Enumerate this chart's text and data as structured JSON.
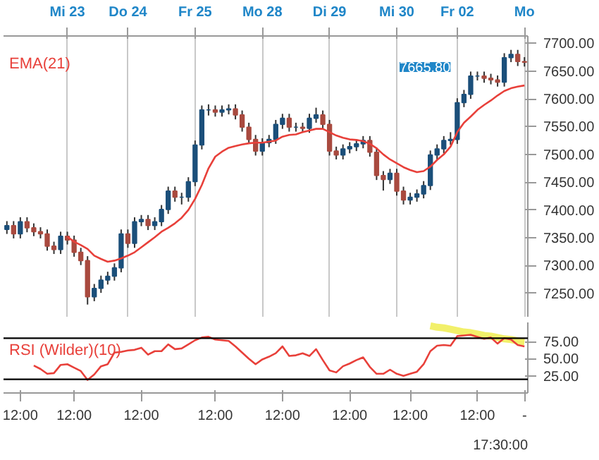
{
  "chart_data": [
    {
      "type": "candlestick",
      "ylim": [
        7208,
        7713
      ],
      "yticks": [
        {
          "value": 7250,
          "label": "7250.00"
        },
        {
          "value": 7300,
          "label": "7300.00"
        },
        {
          "value": 7350,
          "label": "7350.00"
        },
        {
          "value": 7400,
          "label": "7400.00"
        },
        {
          "value": 7450,
          "label": "7450.00"
        },
        {
          "value": 7500,
          "label": "7500.00"
        },
        {
          "value": 7550,
          "label": "7550.00"
        },
        {
          "value": 7600,
          "label": "7600.00"
        },
        {
          "value": 7650,
          "label": "7650.00"
        },
        {
          "value": 7700,
          "label": "7700.00"
        }
      ],
      "grid": "x",
      "categories": [
        null,
        null,
        null,
        null,
        null,
        null,
        null,
        null,
        null,
        "Mi 23",
        null,
        null,
        null,
        null,
        null,
        null,
        null,
        null,
        "Do 24",
        null,
        null,
        null,
        null,
        null,
        null,
        null,
        null,
        null,
        "Fr 25",
        null,
        null,
        null,
        null,
        null,
        null,
        null,
        null,
        null,
        "Mo 28",
        null,
        null,
        null,
        null,
        null,
        null,
        null,
        null,
        null,
        "Di 29",
        null,
        null,
        null,
        null,
        null,
        null,
        null,
        null,
        null,
        "Mi 30",
        null,
        null,
        null,
        null,
        null,
        null,
        null,
        null,
        "Fr 02",
        null,
        null,
        null,
        null,
        null,
        null,
        null,
        null,
        null,
        "Mo"
      ],
      "ohlc": [
        [
          7365,
          7380,
          7357,
          7372
        ],
        [
          7372,
          7380,
          7349,
          7357
        ],
        [
          7357,
          7387,
          7349,
          7379
        ],
        [
          7379,
          7387,
          7360,
          7368
        ],
        [
          7368,
          7376,
          7353,
          7361
        ],
        [
          7361,
          7369,
          7349,
          7357
        ],
        [
          7357,
          7365,
          7327,
          7335
        ],
        [
          7335,
          7343,
          7321,
          7329
        ],
        [
          7329,
          7361,
          7321,
          7353
        ],
        [
          7353,
          7361,
          7338,
          7346
        ],
        [
          7346,
          7354,
          7316,
          7324
        ],
        [
          7324,
          7332,
          7301,
          7309
        ],
        [
          7309,
          7317,
          7230,
          7244
        ],
        [
          7244,
          7267,
          7236,
          7259
        ],
        [
          7259,
          7282,
          7251,
          7274
        ],
        [
          7274,
          7289,
          7266,
          7281
        ],
        [
          7281,
          7304,
          7273,
          7296
        ],
        [
          7296,
          7365,
          7288,
          7357
        ],
        [
          7357,
          7365,
          7332,
          7340
        ],
        [
          7340,
          7387,
          7332,
          7379
        ],
        [
          7379,
          7391,
          7371,
          7383
        ],
        [
          7383,
          7391,
          7364,
          7372
        ],
        [
          7372,
          7387,
          7364,
          7379
        ],
        [
          7379,
          7409,
          7371,
          7401
        ],
        [
          7401,
          7442,
          7393,
          7434
        ],
        [
          7434,
          7442,
          7415,
          7423
        ],
        [
          7423,
          7431,
          7410,
          7423
        ],
        [
          7423,
          7459,
          7415,
          7451
        ],
        [
          7451,
          7525,
          7443,
          7517
        ],
        [
          7517,
          7588,
          7509,
          7580
        ],
        [
          7580,
          7590,
          7570,
          7580
        ],
        [
          7580,
          7588,
          7568,
          7576
        ],
        [
          7576,
          7588,
          7568,
          7580
        ],
        [
          7580,
          7590,
          7572,
          7582
        ],
        [
          7582,
          7590,
          7563,
          7571
        ],
        [
          7571,
          7579,
          7541,
          7549
        ],
        [
          7549,
          7557,
          7519,
          7527
        ],
        [
          7527,
          7535,
          7498,
          7506
        ],
        [
          7506,
          7529,
          7498,
          7521
        ],
        [
          7521,
          7535,
          7513,
          7527
        ],
        [
          7527,
          7562,
          7519,
          7554
        ],
        [
          7554,
          7573,
          7546,
          7565
        ],
        [
          7565,
          7573,
          7541,
          7549
        ],
        [
          7549,
          7557,
          7541,
          7549
        ],
        [
          7549,
          7557,
          7539,
          7547
        ],
        [
          7547,
          7573,
          7539,
          7565
        ],
        [
          7565,
          7584,
          7557,
          7571
        ],
        [
          7571,
          7579,
          7546,
          7554
        ],
        [
          7554,
          7562,
          7498,
          7506
        ],
        [
          7506,
          7514,
          7491,
          7499
        ],
        [
          7499,
          7518,
          7491,
          7510
        ],
        [
          7510,
          7522,
          7502,
          7514
        ],
        [
          7514,
          7527,
          7506,
          7519
        ],
        [
          7519,
          7533,
          7511,
          7525
        ],
        [
          7525,
          7533,
          7496,
          7504
        ],
        [
          7504,
          7512,
          7454,
          7462
        ],
        [
          7462,
          7470,
          7435,
          7455
        ],
        [
          7455,
          7474,
          7447,
          7466
        ],
        [
          7466,
          7474,
          7426,
          7434
        ],
        [
          7434,
          7442,
          7410,
          7418
        ],
        [
          7418,
          7431,
          7410,
          7423
        ],
        [
          7423,
          7437,
          7415,
          7429
        ],
        [
          7429,
          7452,
          7421,
          7444
        ],
        [
          7444,
          7507,
          7436,
          7499
        ],
        [
          7499,
          7518,
          7491,
          7510
        ],
        [
          7510,
          7533,
          7502,
          7525
        ],
        [
          7525,
          7540,
          7517,
          7527
        ],
        [
          7527,
          7601,
          7519,
          7593
        ],
        [
          7593,
          7616,
          7585,
          7608
        ],
        [
          7608,
          7649,
          7600,
          7641
        ],
        [
          7641,
          7649,
          7633,
          7641
        ],
        [
          7641,
          7649,
          7629,
          7637
        ],
        [
          7637,
          7645,
          7626,
          7634
        ],
        [
          7634,
          7642,
          7622,
          7630
        ],
        [
          7630,
          7682,
          7622,
          7674
        ],
        [
          7674,
          7688,
          7666,
          7680
        ],
        [
          7680,
          7688,
          7659,
          7667
        ],
        [
          7667,
          7675,
          7658,
          7665.8
        ]
      ],
      "colors": [
        "#1b4f7a",
        "#a94a3f",
        "#1b4f7a",
        "#a94a3f",
        "#a94a3f",
        "#a94a3f",
        "#a94a3f",
        "#a94a3f",
        "#1b4f7a",
        "#a94a3f",
        "#a94a3f",
        "#a94a3f",
        "#a94a3f",
        "#1b4f7a",
        "#1b4f7a",
        "#1b4f7a",
        "#1b4f7a",
        "#1b4f7a",
        "#a94a3f",
        "#1b4f7a",
        "#1b4f7a",
        "#a94a3f",
        "#1b4f7a",
        "#1b4f7a",
        "#1b4f7a",
        "#a94a3f",
        "#1b4f7a",
        "#1b4f7a",
        "#1b4f7a",
        "#1b4f7a",
        "#1b4f7a",
        "#a94a3f",
        "#1b4f7a",
        "#1b4f7a",
        "#a94a3f",
        "#a94a3f",
        "#a94a3f",
        "#a94a3f",
        "#1b4f7a",
        "#1b4f7a",
        "#1b4f7a",
        "#1b4f7a",
        "#a94a3f",
        "#1b4f7a",
        "#a94a3f",
        "#1b4f7a",
        "#1b4f7a",
        "#a94a3f",
        "#a94a3f",
        "#a94a3f",
        "#1b4f7a",
        "#1b4f7a",
        "#1b4f7a",
        "#1b4f7a",
        "#a94a3f",
        "#a94a3f",
        "#a94a3f",
        "#1b4f7a",
        "#a94a3f",
        "#a94a3f",
        "#1b4f7a",
        "#1b4f7a",
        "#1b4f7a",
        "#1b4f7a",
        "#1b4f7a",
        "#1b4f7a",
        "#1b4f7a",
        "#1b4f7a",
        "#1b4f7a",
        "#1b4f7a",
        "#1b4f7a",
        "#a94a3f",
        "#a94a3f",
        "#a94a3f",
        "#1b4f7a",
        "#1b4f7a",
        "#a94a3f",
        "#a94a3f"
      ],
      "series": [
        {
          "type": "line",
          "name": "EMA(21)",
          "color": "#e8403a",
          "values": [
            null,
            null,
            null,
            null,
            null,
            null,
            null,
            null,
            null,
            7352,
            7343,
            7337,
            7330,
            7318,
            7312,
            7307,
            7309,
            7313,
            7318,
            7324,
            7333,
            7342,
            7351,
            7361,
            7368,
            7376,
            7386,
            7400,
            7420,
            7445,
            7475,
            7496,
            7505,
            7512,
            7515,
            7518,
            7520,
            7521,
            7521,
            7523,
            7525,
            7532,
            7535,
            7536,
            7540,
            7543,
            7546,
            7546,
            7540,
            7534,
            7530,
            7527,
            7526,
            7524,
            7519,
            7511,
            7500,
            7491,
            7484,
            7477,
            7472,
            7468,
            7470,
            7478,
            7490,
            7500,
            7514,
            7540,
            7557,
            7568,
            7580,
            7589,
            7597,
            7606,
            7614,
            7619,
            7622,
            7624
          ]
        }
      ],
      "annotations": [
        "7665.80"
      ]
    },
    {
      "type": "line",
      "ylim": [
        0,
        103
      ],
      "yticks": [
        {
          "value": 25,
          "label": "25.00"
        },
        {
          "value": 50,
          "label": "50.00"
        },
        {
          "value": 75,
          "label": "75.00"
        }
      ],
      "categories": [
        null,
        null,
        "12:00",
        null,
        null,
        null,
        null,
        null,
        null,
        null,
        "12:00",
        null,
        null,
        null,
        null,
        null,
        null,
        null,
        null,
        null,
        "12:00",
        null,
        null,
        null,
        null,
        null,
        null,
        null,
        null,
        null,
        null,
        "12:00",
        null,
        null,
        null,
        null,
        null,
        null,
        null,
        null,
        null,
        "12:00",
        null,
        null,
        null,
        null,
        null,
        null,
        null,
        null,
        null,
        "12:00",
        null,
        null,
        null,
        null,
        null,
        null,
        null,
        null,
        "12:00",
        null,
        null,
        null,
        null,
        null,
        null,
        null,
        null,
        null,
        "12:00",
        null,
        null,
        null,
        null,
        null,
        null,
        "-"
      ],
      "series": [
        {
          "name": "RSI (Wilder)(10)",
          "color": "#e8403a",
          "values": [
            null,
            null,
            null,
            null,
            40,
            35,
            28,
            29,
            41,
            42,
            37,
            32,
            19,
            27,
            39,
            42,
            59,
            60,
            62,
            63,
            66,
            56,
            61,
            61,
            71,
            64,
            65,
            71,
            77,
            81,
            82,
            78,
            77,
            76,
            68,
            59,
            50,
            42,
            49,
            53,
            58,
            68,
            54,
            55,
            58,
            54,
            64,
            48,
            33,
            30,
            39,
            43,
            48,
            52,
            38,
            28,
            28,
            34,
            28,
            25,
            28,
            31,
            42,
            61,
            69,
            70,
            69,
            83,
            84,
            85,
            82,
            79,
            81,
            72,
            80,
            78,
            70,
            68
          ]
        },
        {
          "type": "line",
          "color": "#f2f06a",
          "values": [
            null,
            null,
            null,
            null,
            null,
            null,
            null,
            null,
            null,
            null,
            null,
            null,
            null,
            null,
            null,
            null,
            null,
            null,
            null,
            null,
            null,
            null,
            null,
            null,
            null,
            null,
            null,
            null,
            null,
            null,
            null,
            null,
            null,
            null,
            null,
            null,
            null,
            null,
            null,
            null,
            null,
            null,
            null,
            null,
            null,
            null,
            null,
            null,
            null,
            null,
            null,
            null,
            null,
            null,
            null,
            null,
            null,
            null,
            null,
            null,
            null,
            null,
            null,
            98,
            96,
            95,
            93,
            91,
            89,
            88,
            86,
            84,
            83,
            81,
            79,
            78,
            76,
            75
          ]
        }
      ],
      "ref_lines": [
        {
          "axis": "y",
          "value": 80,
          "color": "#000000"
        },
        {
          "axis": "y",
          "value": 20,
          "color": "#000000"
        }
      ],
      "annotations": [
        "17:30:00"
      ]
    }
  ]
}
